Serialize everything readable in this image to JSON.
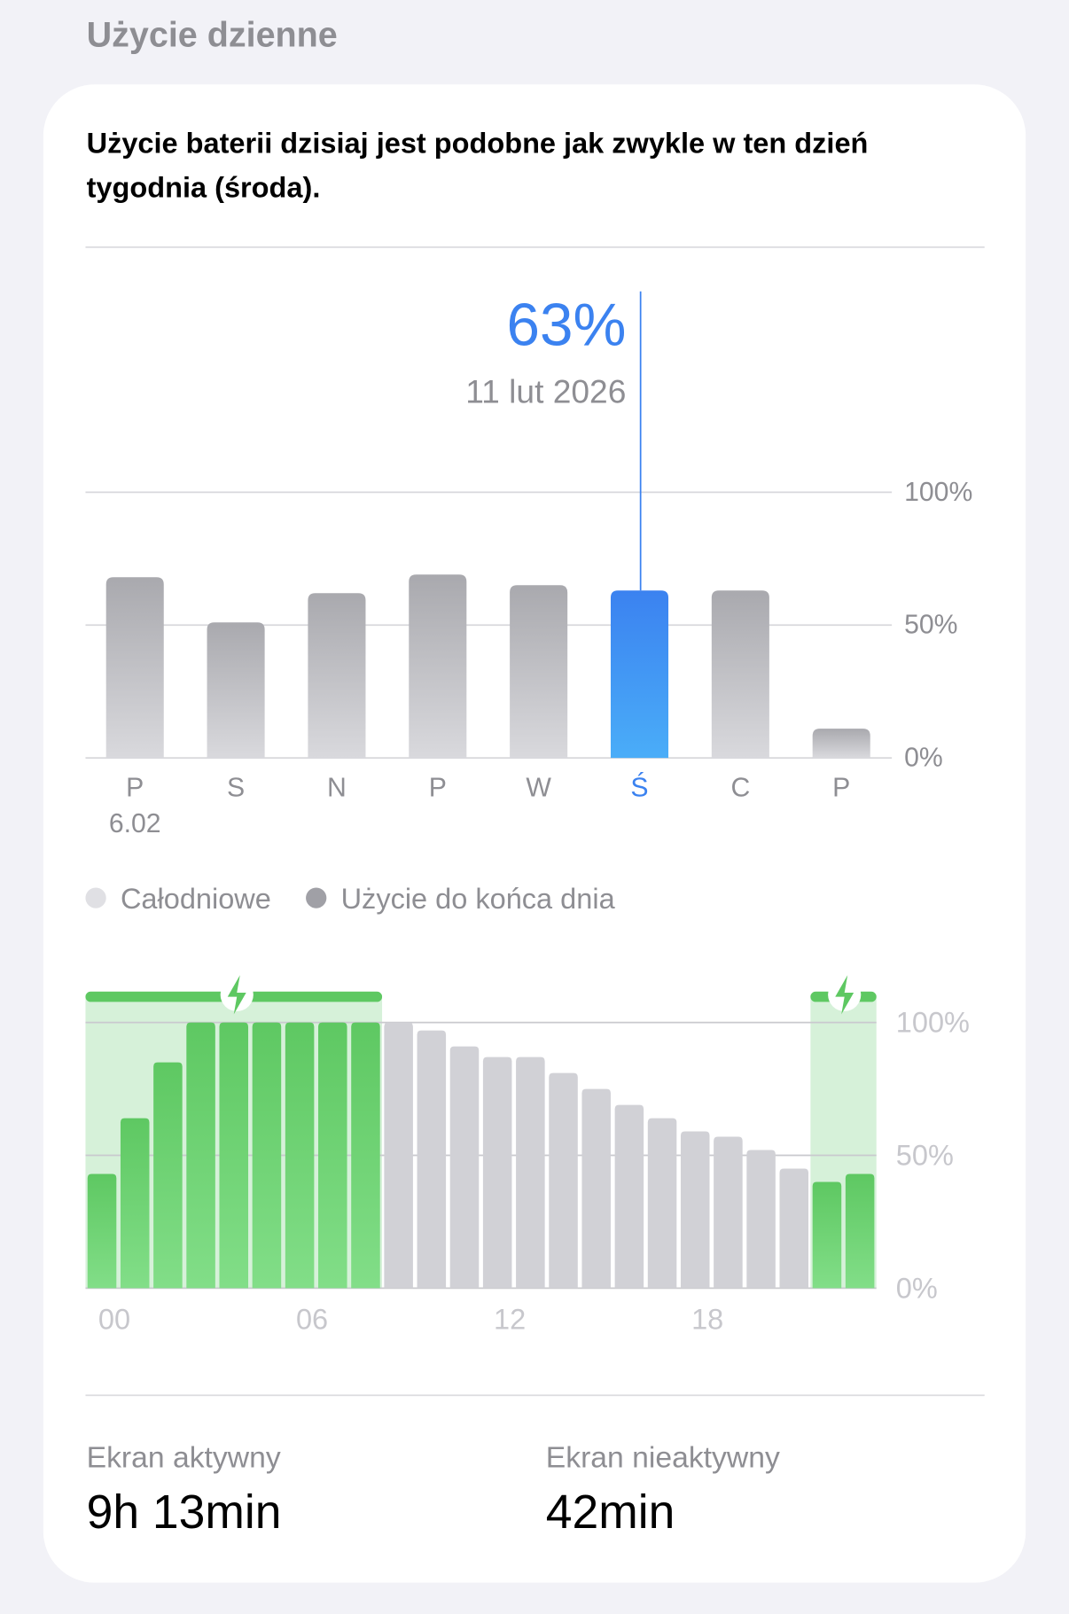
{
  "header": {
    "title": "Użycie dzienne"
  },
  "card": {
    "summary": [
      "Użycie baterii dzisiaj jest podobne jak zwykle w ten dzień",
      "tygodnia (środa)."
    ]
  },
  "daily_chart": {
    "type": "bar",
    "categories": [
      "P",
      "S",
      "N",
      "P",
      "W",
      "Ś",
      "C",
      "P"
    ],
    "first_date": "6.02",
    "values": [
      68,
      51,
      62,
      69,
      65,
      63,
      63,
      11
    ],
    "color": "#a9a9ae",
    "selected_color": "#3b82f0",
    "selected_index": 5,
    "selected_label": "63%",
    "selected_date": "11 lut 2026",
    "ylim": [
      0,
      100
    ],
    "yticks": [
      {
        "value": 0,
        "label": "0%"
      },
      {
        "value": 50,
        "label": "50%"
      },
      {
        "value": 100,
        "label": "100%"
      }
    ],
    "grid": true,
    "legend": [
      {
        "name": "Całodniowe",
        "color": "#e0e0e4"
      },
      {
        "name": "Użycie do końca dnia",
        "color": "#a0a0a6"
      }
    ]
  },
  "hourly_chart": {
    "type": "bar",
    "values": [
      43,
      64,
      85,
      100,
      100,
      100,
      100,
      100,
      100,
      100,
      97,
      91,
      87,
      87,
      81,
      75,
      69,
      64,
      59,
      57,
      52,
      45,
      40,
      43
    ],
    "colors": [
      "#5ec862",
      "#5ec862",
      "#5ec862",
      "#5ec862",
      "#5ec862",
      "#5ec862",
      "#5ec862",
      "#5ec862",
      "#5ec862",
      "#d1d1d6",
      "#d1d1d6",
      "#d1d1d6",
      "#d1d1d6",
      "#d1d1d6",
      "#d1d1d6",
      "#d1d1d6",
      "#d1d1d6",
      "#d1d1d6",
      "#d1d1d6",
      "#d1d1d6",
      "#d1d1d6",
      "#d1d1d6",
      "#5ec862",
      "#5ec862"
    ],
    "charging_periods": [
      [
        0,
        9
      ],
      [
        22,
        24
      ]
    ],
    "xlim": [
      0,
      24
    ],
    "xticks": [
      {
        "value": 0,
        "label": "00"
      },
      {
        "value": 6,
        "label": "06"
      },
      {
        "value": 12,
        "label": "12"
      },
      {
        "value": 18,
        "label": "18"
      }
    ],
    "ylim": [
      0,
      100
    ],
    "yticks": [
      {
        "value": 0,
        "label": "0%"
      },
      {
        "value": 50,
        "label": "50%"
      },
      {
        "value": 100,
        "label": "100%"
      }
    ],
    "grid": true
  },
  "stats": [
    {
      "label": "Ekran aktywny",
      "value": "9h 13min"
    },
    {
      "label": "Ekran nieaktywny",
      "value": "42min"
    }
  ]
}
